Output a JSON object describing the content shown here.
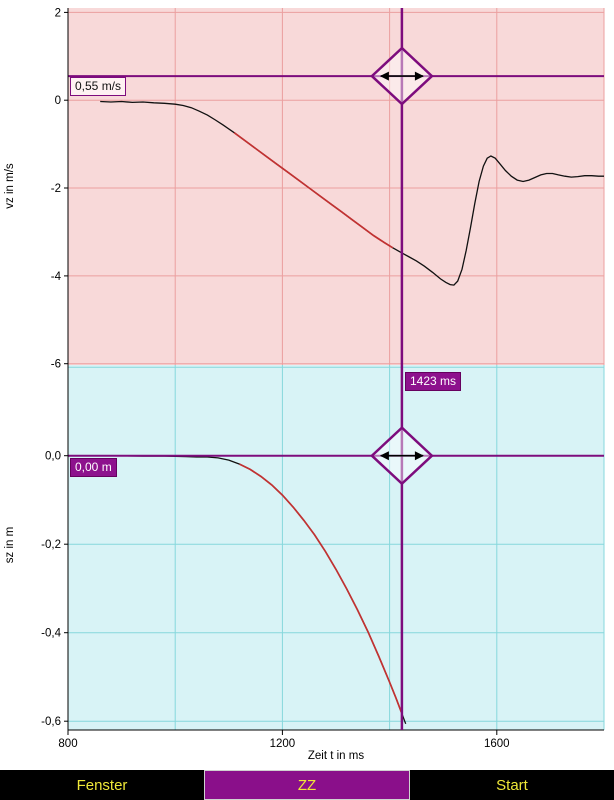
{
  "cursor": {
    "time_label": "1423 ms",
    "velocity_label": "0,55 m/s",
    "position_label": "0,00 m",
    "x_value": 1423,
    "color": "#7d0c7d"
  },
  "toolbar": {
    "fenster_label": "Fenster",
    "zz_label": "ZZ",
    "start_label": "Start",
    "bg": "#000000",
    "text_color": "#efe838",
    "zz_bg": "#8a0f8a",
    "zz_border": "#d0d0d0"
  },
  "chart_data": [
    {
      "id": "vz",
      "type": "line",
      "title": "",
      "ylabel": "vz in m/s",
      "xlim": [
        800,
        1800
      ],
      "ylim": [
        -6.03,
        2.1
      ],
      "yticks": [
        2,
        0,
        -2,
        -4,
        -6
      ],
      "ytick_labels": [
        "2",
        "0",
        "-2",
        "-4",
        "-6"
      ],
      "grid_x": [
        1000,
        1200,
        1400,
        1600,
        1800
      ],
      "grid_y": [
        2,
        0,
        -2,
        -4,
        -6
      ],
      "bg_color": "#f8d9d9",
      "grid_color": "#eb9f9f",
      "line_color": "#111111",
      "fit_color": "#c23232",
      "fit_range": [
        1100,
        1406
      ],
      "marker_y": 0.55,
      "points": [
        [
          860,
          -0.03
        ],
        [
          880,
          -0.04
        ],
        [
          900,
          -0.03
        ],
        [
          920,
          -0.05
        ],
        [
          940,
          -0.04
        ],
        [
          960,
          -0.06
        ],
        [
          980,
          -0.07
        ],
        [
          1000,
          -0.09
        ],
        [
          1015,
          -0.12
        ],
        [
          1030,
          -0.17
        ],
        [
          1045,
          -0.25
        ],
        [
          1060,
          -0.34
        ],
        [
          1075,
          -0.45
        ],
        [
          1090,
          -0.57
        ],
        [
          1110,
          -0.74
        ],
        [
          1130,
          -0.92
        ],
        [
          1150,
          -1.1
        ],
        [
          1170,
          -1.28
        ],
        [
          1190,
          -1.46
        ],
        [
          1210,
          -1.64
        ],
        [
          1230,
          -1.82
        ],
        [
          1250,
          -2.0
        ],
        [
          1270,
          -2.18
        ],
        [
          1290,
          -2.36
        ],
        [
          1310,
          -2.54
        ],
        [
          1330,
          -2.72
        ],
        [
          1350,
          -2.9
        ],
        [
          1370,
          -3.08
        ],
        [
          1390,
          -3.24
        ],
        [
          1406,
          -3.36
        ],
        [
          1420,
          -3.46
        ],
        [
          1435,
          -3.56
        ],
        [
          1450,
          -3.66
        ],
        [
          1465,
          -3.78
        ],
        [
          1480,
          -3.92
        ],
        [
          1495,
          -4.07
        ],
        [
          1505,
          -4.15
        ],
        [
          1513,
          -4.2
        ],
        [
          1520,
          -4.21
        ],
        [
          1527,
          -4.12
        ],
        [
          1535,
          -3.85
        ],
        [
          1543,
          -3.42
        ],
        [
          1551,
          -2.9
        ],
        [
          1559,
          -2.35
        ],
        [
          1567,
          -1.85
        ],
        [
          1575,
          -1.5
        ],
        [
          1582,
          -1.32
        ],
        [
          1589,
          -1.27
        ],
        [
          1597,
          -1.32
        ],
        [
          1606,
          -1.45
        ],
        [
          1616,
          -1.6
        ],
        [
          1627,
          -1.73
        ],
        [
          1638,
          -1.82
        ],
        [
          1649,
          -1.85
        ],
        [
          1660,
          -1.82
        ],
        [
          1671,
          -1.76
        ],
        [
          1682,
          -1.7
        ],
        [
          1693,
          -1.67
        ],
        [
          1704,
          -1.67
        ],
        [
          1715,
          -1.7
        ],
        [
          1727,
          -1.73
        ],
        [
          1739,
          -1.75
        ],
        [
          1751,
          -1.74
        ],
        [
          1764,
          -1.72
        ],
        [
          1777,
          -1.72
        ],
        [
          1790,
          -1.73
        ],
        [
          1800,
          -1.73
        ]
      ]
    },
    {
      "id": "sz",
      "type": "line",
      "title": "",
      "ylabel": "sz in m",
      "xlabel": "Zeit t in ms",
      "xlim": [
        800,
        1800
      ],
      "ylim": [
        -0.62,
        0.205
      ],
      "yticks": [
        0.0,
        -0.2,
        -0.4,
        -0.6
      ],
      "ytick_labels": [
        "0,0",
        "-0,2",
        "-0,4",
        "-0,6"
      ],
      "xticks": [
        800,
        1200,
        1600
      ],
      "xtick_labels": [
        "800",
        "1200",
        "1600"
      ],
      "grid_x": [
        1000,
        1200,
        1400,
        1600,
        1800
      ],
      "grid_y": [
        0.2,
        0.0,
        -0.2,
        -0.4,
        -0.6
      ],
      "bg_color": "#d8f3f6",
      "grid_color": "#86d7dc",
      "line_color": "#111111",
      "fit_color": "#c23232",
      "fit_range": [
        1120,
        1423
      ],
      "marker_y": 0.0,
      "points": [
        [
          860,
          0
        ],
        [
          900,
          0
        ],
        [
          940,
          -0.001
        ],
        [
          980,
          -0.001
        ],
        [
          1020,
          -0.002
        ],
        [
          1040,
          -0.003
        ],
        [
          1060,
          -0.003
        ],
        [
          1080,
          -0.005
        ],
        [
          1100,
          -0.01
        ],
        [
          1120,
          -0.019
        ],
        [
          1140,
          -0.031
        ],
        [
          1160,
          -0.047
        ],
        [
          1180,
          -0.066
        ],
        [
          1200,
          -0.089
        ],
        [
          1220,
          -0.116
        ],
        [
          1240,
          -0.146
        ],
        [
          1260,
          -0.179
        ],
        [
          1280,
          -0.216
        ],
        [
          1300,
          -0.257
        ],
        [
          1320,
          -0.301
        ],
        [
          1340,
          -0.348
        ],
        [
          1360,
          -0.399
        ],
        [
          1380,
          -0.454
        ],
        [
          1400,
          -0.512
        ],
        [
          1412,
          -0.548
        ],
        [
          1422,
          -0.58
        ],
        [
          1430,
          -0.606
        ]
      ]
    }
  ]
}
